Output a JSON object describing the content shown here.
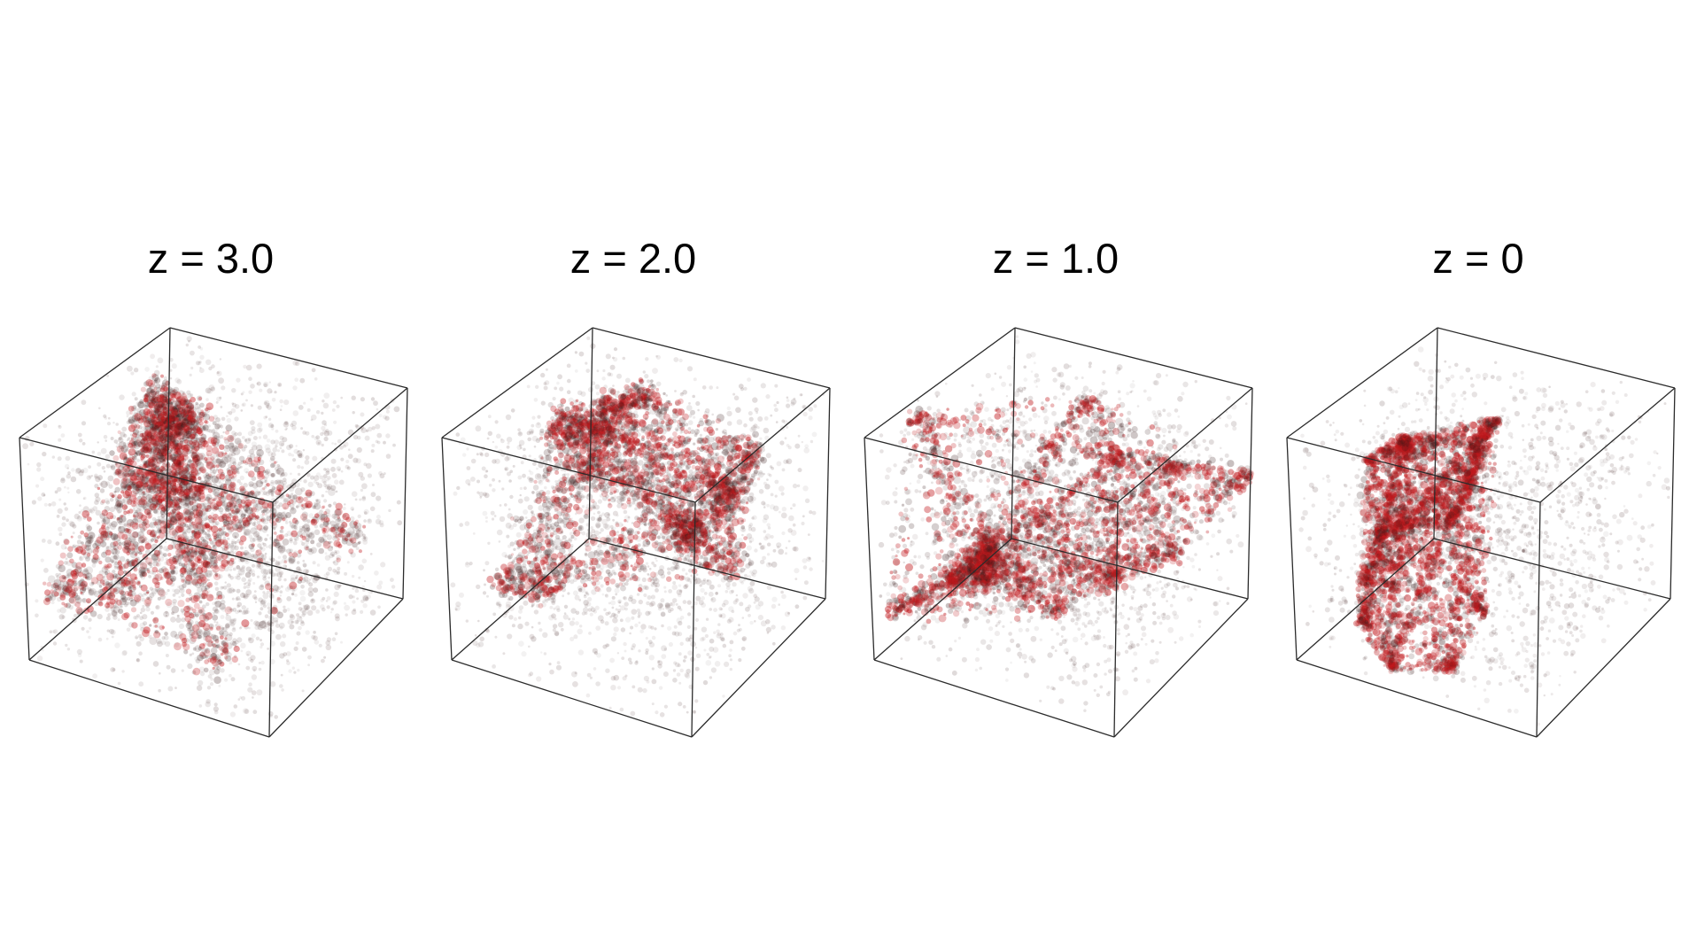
{
  "panels": [
    {
      "title": "z = 3.0",
      "seed": 11,
      "clumping": 0.25
    },
    {
      "title": "z = 2.0",
      "seed": 23,
      "clumping": 0.45
    },
    {
      "title": "z = 1.0",
      "seed": 37,
      "clumping": 0.65
    },
    {
      "title": "z = 0",
      "seed": 53,
      "clumping": 0.85
    }
  ],
  "colors": {
    "background": "#ffffff",
    "edge": "#2b2b2b",
    "filament": "#c0181c",
    "dark_matter": "#3a1a1a",
    "title": "#000000"
  }
}
